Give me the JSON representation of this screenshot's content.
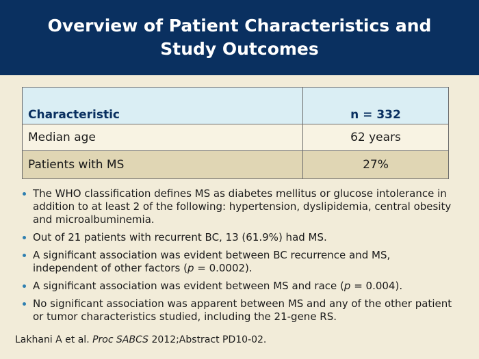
{
  "slide": {
    "title": "Overview of Patient Characteristics and Study Outcomes"
  },
  "table": {
    "headers": [
      "Characteristic",
      "n = 332"
    ],
    "rows": [
      [
        "Median age",
        "62 years"
      ],
      [
        "Patients with MS",
        "27%"
      ]
    ]
  },
  "bullets": [
    {
      "text": "The WHO classification defines MS as diabetes mellitus or glucose intolerance in addition to at least 2 of the following: hypertension, dyslipidemia, central obesity and microalbuminemia."
    },
    {
      "text": "Out of 21 patients with recurrent BC, 13 (61.9%) had MS."
    },
    {
      "before": "A significant association was evident between BC recurrence and MS, independent of other factors (",
      "p": "p",
      "after": " = 0.0002)."
    },
    {
      "before": "A significant association was evident between MS and race (",
      "p": "p",
      "after": " = 0.004)."
    },
    {
      "text": "No significant association was apparent between MS and any of the other patient or tumor characteristics studied, including the 21-gene RS."
    }
  ],
  "citation": {
    "authors": "Lakhani A et al. ",
    "journal": "Proc SABCS",
    "rest": " 2012;Abstract PD10-02."
  },
  "colors": {
    "header_bg": "#0a3060",
    "page_bg": "#f2ecd9",
    "table_header_bg": "#daeef4",
    "table_row_alt_bg": "#e0d6b4",
    "bullet": "#2f7fb0"
  }
}
